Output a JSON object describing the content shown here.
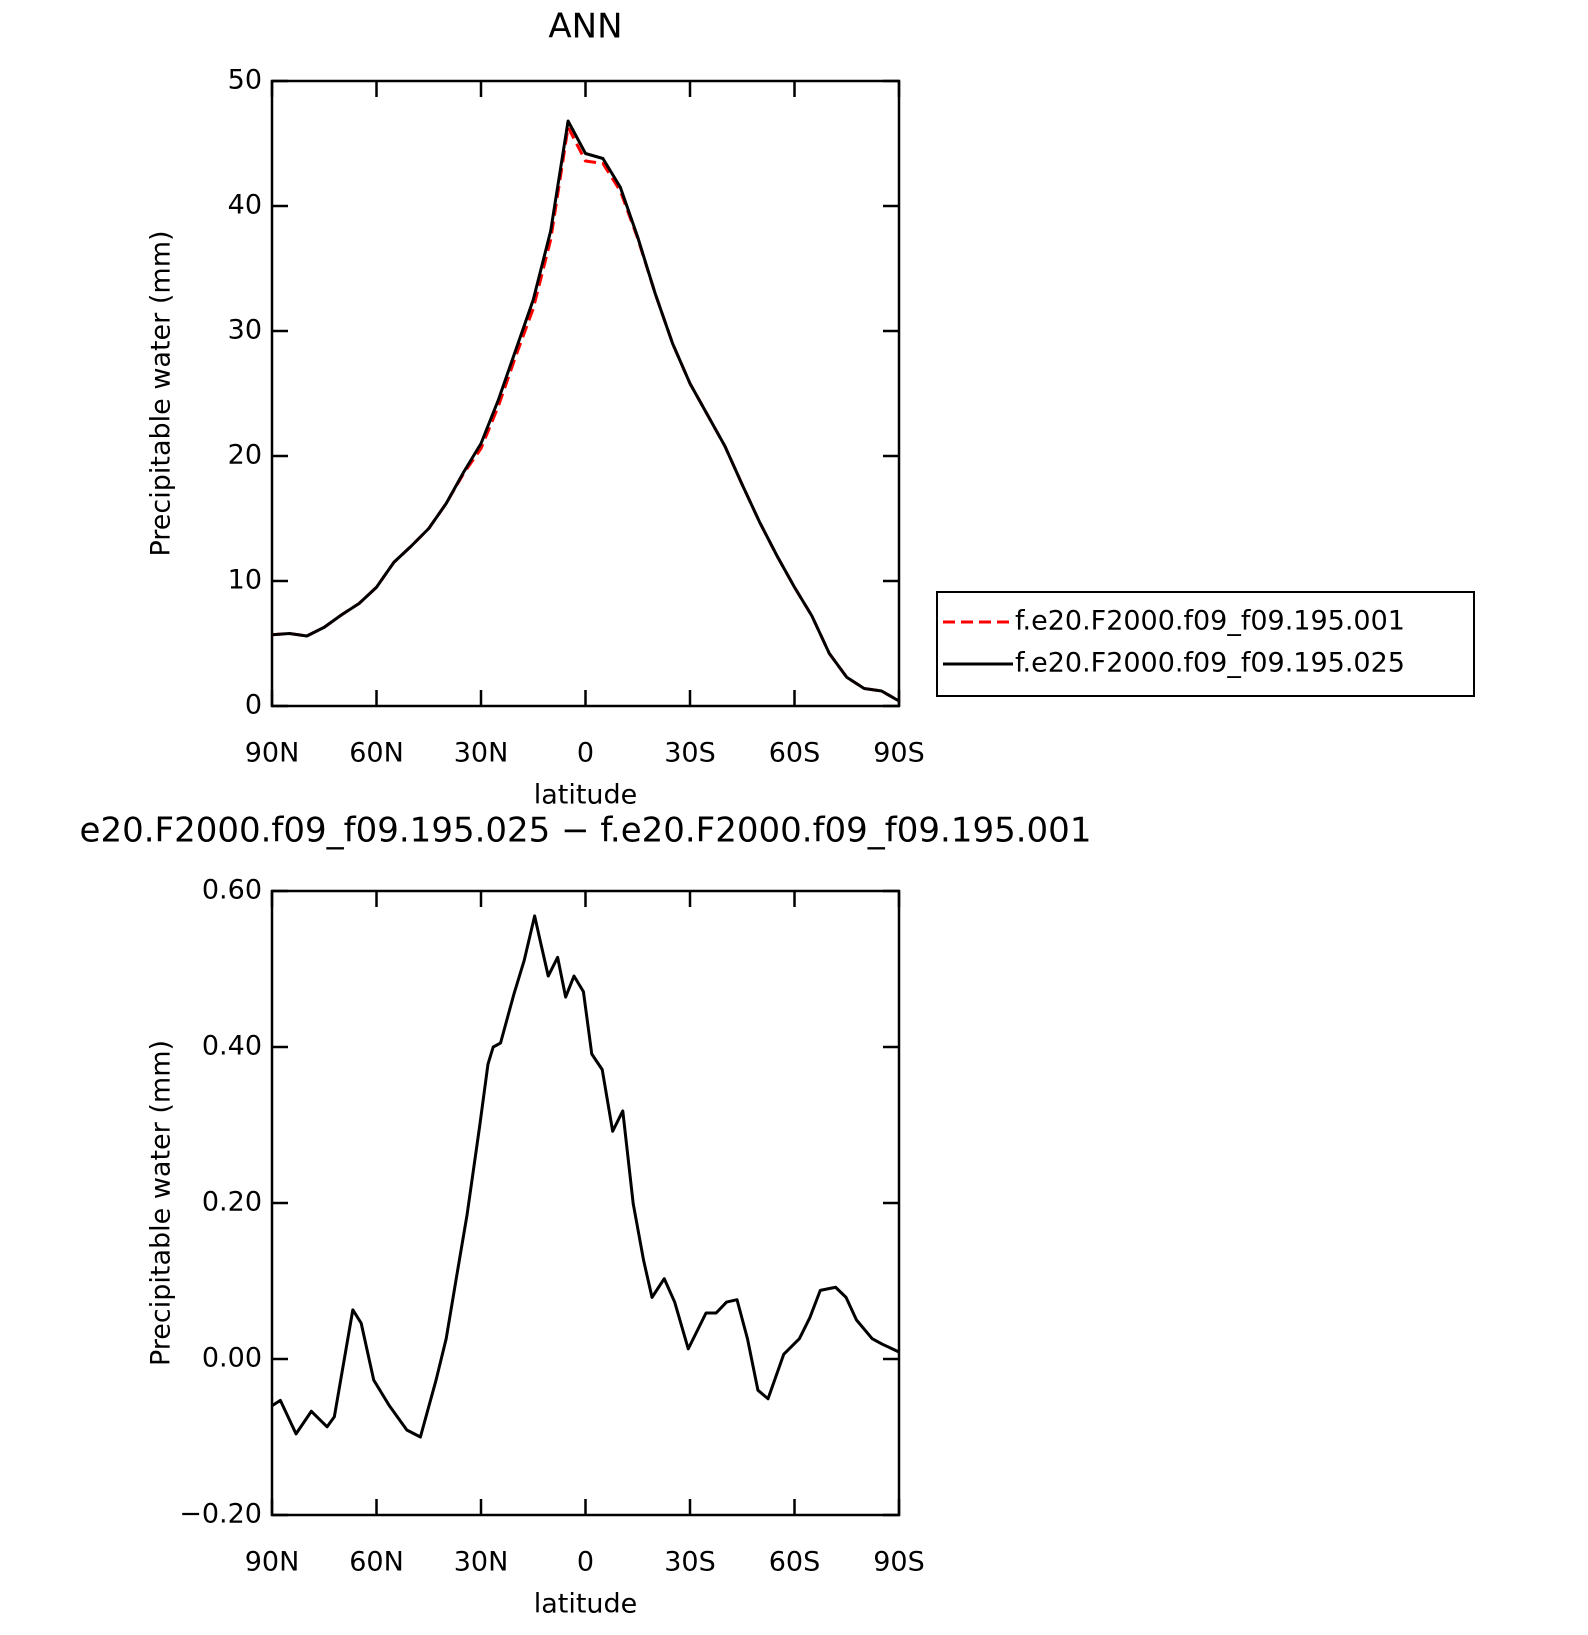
{
  "chart_data": [
    {
      "type": "line",
      "title": "ANN",
      "x_label": "latitude",
      "y_label": "Precipitable water (mm)",
      "xlim": [
        90,
        -90
      ],
      "xticks": [
        {
          "value": 90,
          "label": "90N"
        },
        {
          "value": 60,
          "label": "60N"
        },
        {
          "value": 30,
          "label": "30N"
        },
        0,
        {
          "value": -30,
          "label": "30S"
        },
        {
          "value": -60,
          "label": "60S"
        },
        {
          "value": -90,
          "label": "90S"
        }
      ],
      "ylim": [
        0,
        50
      ],
      "yticks": [
        0,
        10,
        20,
        30,
        40,
        50
      ],
      "legend": "right",
      "x": [
        90,
        85,
        80,
        75,
        70,
        65,
        60,
        55,
        50,
        45,
        40,
        35,
        30,
        25,
        20,
        15,
        10,
        5,
        0,
        -5,
        -10,
        -15,
        -20,
        -25,
        -30,
        -35,
        -40,
        -45,
        -50,
        -55,
        -60,
        -65,
        -70,
        -75,
        -80,
        -85,
        -90
      ],
      "series": [
        {
          "name": "f.e20.F2000.f09_f09.195.001",
          "color": "#ff0000",
          "dash": true,
          "values": [
            5.7,
            5.8,
            5.6,
            6.3,
            7.3,
            8.2,
            9.5,
            11.5,
            12.8,
            14.2,
            16.2,
            18.6,
            20.6,
            24.0,
            28.0,
            31.8,
            37.3,
            46.3,
            43.6,
            43.4,
            41.2,
            37.4,
            33.0,
            29.0,
            25.8,
            23.3,
            20.8,
            17.7,
            14.7,
            12.0,
            9.5,
            7.2,
            4.2,
            2.3,
            1.4,
            1.2,
            0.4
          ]
        },
        {
          "name": "f.e20.F2000.f09_f09.195.025",
          "color": "#000000",
          "dash": false,
          "values": [
            5.7,
            5.8,
            5.6,
            6.3,
            7.3,
            8.2,
            9.5,
            11.5,
            12.8,
            14.2,
            16.2,
            18.7,
            21.0,
            24.5,
            28.5,
            32.5,
            38.0,
            46.8,
            44.2,
            43.8,
            41.5,
            37.5,
            33.0,
            29.0,
            25.8,
            23.3,
            20.8,
            17.7,
            14.7,
            12.0,
            9.5,
            7.2,
            4.2,
            2.3,
            1.4,
            1.2,
            0.4
          ]
        }
      ]
    },
    {
      "type": "line",
      "title": "e20.F2000.f09_f09.195.025 − f.e20.F2000.f09_f09.195.001",
      "x_label": "latitude",
      "y_label": "Precipitable water (mm)",
      "xlim": [
        90,
        -90
      ],
      "xticks": [
        {
          "value": 90,
          "label": "90N"
        },
        {
          "value": 60,
          "label": "60N"
        },
        {
          "value": 30,
          "label": "30N"
        },
        0,
        {
          "value": -30,
          "label": "30S"
        },
        {
          "value": -60,
          "label": "60S"
        },
        {
          "value": -90,
          "label": "90S"
        }
      ],
      "ylim": [
        -0.2,
        0.6
      ],
      "yticks": [
        {
          "value": -0.2,
          "label": "−0.20"
        },
        {
          "value": 0,
          "label": "0.00"
        },
        {
          "value": 0.2,
          "label": "0.20"
        },
        {
          "value": 0.4,
          "label": "0.40"
        },
        {
          "value": 0.6,
          "label": "0.60"
        }
      ],
      "x": [
        90,
        87.6,
        83.1,
        78.7,
        74.2,
        72.1,
        66.8,
        64.4,
        60.8,
        56.3,
        51.3,
        47.4,
        42.9,
        40,
        37,
        34,
        30.4,
        28,
        26.5,
        24.4,
        20.6,
        17.6,
        14.6,
        13.1,
        10.7,
        8,
        5.7,
        3.3,
        0.6,
        -1.8,
        -4.8,
        -7.8,
        -10.7,
        -13.7,
        -16.7,
        -19.1,
        -22.6,
        -25.6,
        -29.5,
        -34.6,
        -37.5,
        -40.5,
        -43.5,
        -46.5,
        -49.5,
        -52.4,
        -56.9,
        -61.4,
        -64.4,
        -67.4,
        -71.8,
        -74.8,
        -77.8,
        -82.3,
        -85.2,
        -90
      ],
      "series": [
        {
          "color": "#000000",
          "dash": false,
          "values": [
            -0.06,
            -0.053,
            -0.096,
            -0.067,
            -0.087,
            -0.074,
            0.063,
            0.046,
            -0.027,
            -0.06,
            -0.091,
            -0.1,
            -0.027,
            0.026,
            0.106,
            0.185,
            0.298,
            0.378,
            0.4,
            0.405,
            0.467,
            0.511,
            0.568,
            0.538,
            0.491,
            0.515,
            0.464,
            0.491,
            0.471,
            0.391,
            0.371,
            0.292,
            0.318,
            0.199,
            0.126,
            0.079,
            0.103,
            0.073,
            0.013,
            0.059,
            0.059,
            0.073,
            0.076,
            0.026,
            -0.04,
            -0.051,
            0.006,
            0.026,
            0.053,
            0.088,
            0.092,
            0.079,
            0.05,
            0.026,
            0.019,
            0.009
          ]
        }
      ]
    }
  ]
}
